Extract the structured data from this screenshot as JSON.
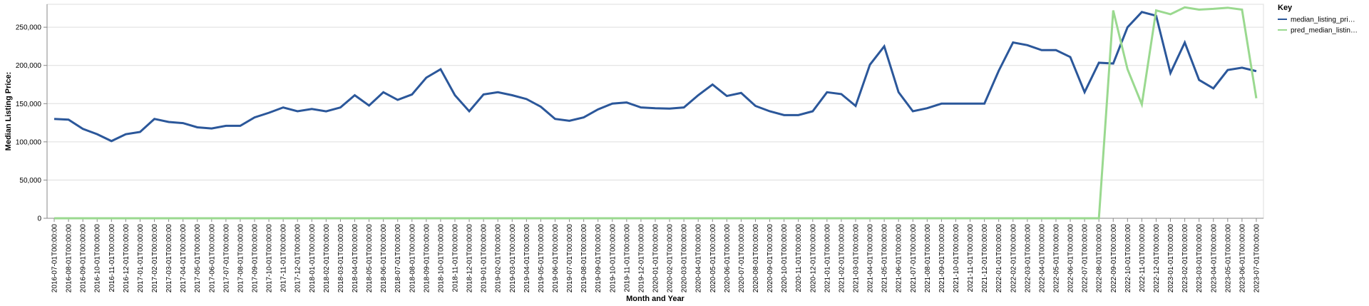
{
  "chart_data": {
    "type": "line",
    "x_label": "Month and Year",
    "y_label": "Median Listing Price:",
    "legend_title": "Key",
    "categories": [
      "2016-07-01T00:00:00",
      "2016-08-01T00:00:00",
      "2016-09-01T00:00:00",
      "2016-10-01T00:00:00",
      "2016-11-01T00:00:00",
      "2016-12-01T00:00:00",
      "2017-01-01T00:00:00",
      "2017-02-01T00:00:00",
      "2017-03-01T00:00:00",
      "2017-04-01T00:00:00",
      "2017-05-01T00:00:00",
      "2017-06-01T00:00:00",
      "2017-07-01T00:00:00",
      "2017-08-01T00:00:00",
      "2017-09-01T00:00:00",
      "2017-10-01T00:00:00",
      "2017-11-01T00:00:00",
      "2017-12-01T00:00:00",
      "2018-01-01T00:00:00",
      "2018-02-01T00:00:00",
      "2018-03-01T00:00:00",
      "2018-04-01T00:00:00",
      "2018-05-01T00:00:00",
      "2018-06-01T00:00:00",
      "2018-07-01T00:00:00",
      "2018-08-01T00:00:00",
      "2018-09-01T00:00:00",
      "2018-10-01T00:00:00",
      "2018-11-01T00:00:00",
      "2018-12-01T00:00:00",
      "2019-01-01T00:00:00",
      "2019-02-01T00:00:00",
      "2019-03-01T00:00:00",
      "2019-04-01T00:00:00",
      "2019-05-01T00:00:00",
      "2019-06-01T00:00:00",
      "2019-07-01T00:00:00",
      "2019-08-01T00:00:00",
      "2019-09-01T00:00:00",
      "2019-10-01T00:00:00",
      "2019-11-01T00:00:00",
      "2019-12-01T00:00:00",
      "2020-01-01T00:00:00",
      "2020-02-01T00:00:00",
      "2020-03-01T00:00:00",
      "2020-04-01T00:00:00",
      "2020-05-01T00:00:00",
      "2020-06-01T00:00:00",
      "2020-07-01T00:00:00",
      "2020-08-01T00:00:00",
      "2020-09-01T00:00:00",
      "2020-10-01T00:00:00",
      "2020-11-01T00:00:00",
      "2020-12-01T00:00:00",
      "2021-01-01T00:00:00",
      "2021-02-01T00:00:00",
      "2021-03-01T00:00:00",
      "2021-04-01T00:00:00",
      "2021-05-01T00:00:00",
      "2021-06-01T00:00:00",
      "2021-07-01T00:00:00",
      "2021-08-01T00:00:00",
      "2021-09-01T00:00:00",
      "2021-10-01T00:00:00",
      "2021-11-01T00:00:00",
      "2021-12-01T00:00:00",
      "2022-01-01T00:00:00",
      "2022-02-01T00:00:00",
      "2022-03-01T00:00:00",
      "2022-04-01T00:00:00",
      "2022-05-01T00:00:00",
      "2022-06-01T00:00:00",
      "2022-07-01T00:00:00",
      "2022-08-01T00:00:00",
      "2022-09-01T00:00:00",
      "2022-10-01T00:00:00",
      "2022-11-01T00:00:00",
      "2022-12-01T00:00:00",
      "2023-01-01T00:00:00",
      "2023-02-01T00:00:00",
      "2023-03-01T00:00:00",
      "2023-04-01T00:00:00",
      "2023-05-01T00:00:00",
      "2023-06-01T00:00:00",
      "2023-07-01T00:00:00"
    ],
    "series": [
      {
        "name": "median_listing_pri…",
        "color": "#2b579a",
        "values": [
          130000,
          129000,
          117000,
          110000,
          101000,
          110000,
          113000,
          130000,
          126000,
          124500,
          119000,
          117500,
          121000,
          121000,
          132000,
          138000,
          145000,
          140000,
          143000,
          139900,
          145000,
          161000,
          147500,
          164900,
          154900,
          162000,
          184000,
          195000,
          161000,
          140000,
          162000,
          164900,
          161000,
          156000,
          146000,
          130000,
          127500,
          132000,
          142500,
          150000,
          151500,
          145000,
          144000,
          143500,
          145000,
          161000,
          175000,
          160000,
          164000,
          147000,
          140000,
          135000,
          135000,
          140000,
          164900,
          162500,
          147000,
          201000,
          225000,
          165000,
          140000,
          144000,
          150000,
          150000,
          150000,
          150000,
          193000,
          230000,
          226500,
          220000,
          220000,
          211000,
          165000,
          203500,
          202500,
          249900,
          269900,
          265000,
          190000,
          230000,
          181000,
          170000,
          194000,
          197000,
          192500
        ]
      },
      {
        "name": "pred_median_listin…",
        "color": "#9ad98f",
        "values": [
          0,
          0,
          0,
          0,
          0,
          0,
          0,
          0,
          0,
          0,
          0,
          0,
          0,
          0,
          0,
          0,
          0,
          0,
          0,
          0,
          0,
          0,
          0,
          0,
          0,
          0,
          0,
          0,
          0,
          0,
          0,
          0,
          0,
          0,
          0,
          0,
          0,
          0,
          0,
          0,
          0,
          0,
          0,
          0,
          0,
          0,
          0,
          0,
          0,
          0,
          0,
          0,
          0,
          0,
          0,
          0,
          0,
          0,
          0,
          0,
          0,
          0,
          0,
          0,
          0,
          0,
          0,
          0,
          0,
          0,
          0,
          0,
          0,
          0,
          272000,
          195000,
          149000,
          272000,
          267000,
          276000,
          273000,
          274000,
          275500,
          273000,
          157000
        ]
      }
    ],
    "ylim": [
      0,
      280000
    ],
    "yticks": [
      0,
      {
        "value": 50000,
        "label": "50,000"
      },
      {
        "value": 100000,
        "label": "100,000"
      },
      {
        "value": 150000,
        "label": "150,000"
      },
      {
        "value": 200000,
        "label": "200,000"
      },
      {
        "value": 250000,
        "label": "250,000"
      }
    ],
    "grid": true,
    "legend": "right"
  }
}
